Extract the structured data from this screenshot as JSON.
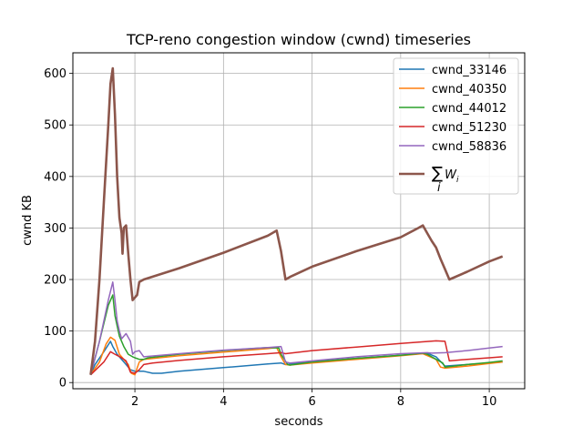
{
  "chart_data": {
    "type": "line",
    "title": "TCP-reno congestion window (cwnd) timeseries",
    "xlabel": "seconds",
    "ylabel": "cwnd KB",
    "xlim": [
      0.6,
      10.8
    ],
    "ylim": [
      -12,
      640
    ],
    "xticks": [
      2,
      4,
      6,
      8,
      10
    ],
    "yticks": [
      0,
      100,
      200,
      300,
      400,
      500,
      600
    ],
    "grid": true,
    "legend_position": "top-right",
    "series": [
      {
        "name": "cwnd_33146",
        "color": "#1f77b4",
        "points": [
          [
            1.0,
            15
          ],
          [
            1.1,
            35
          ],
          [
            1.3,
            60
          ],
          [
            1.45,
            80
          ],
          [
            1.5,
            70
          ],
          [
            1.6,
            55
          ],
          [
            1.7,
            45
          ],
          [
            1.8,
            35
          ],
          [
            1.9,
            25
          ],
          [
            2.0,
            22
          ],
          [
            2.2,
            22
          ],
          [
            2.4,
            18
          ],
          [
            2.6,
            18
          ],
          [
            3.0,
            22
          ],
          [
            4.0,
            29
          ],
          [
            5.0,
            36
          ],
          [
            5.3,
            38
          ],
          [
            5.4,
            35
          ],
          [
            6.0,
            40
          ],
          [
            7.0,
            47
          ],
          [
            8.0,
            53
          ],
          [
            8.6,
            57
          ],
          [
            8.8,
            50
          ],
          [
            9.0,
            32
          ],
          [
            9.5,
            35
          ],
          [
            10.0,
            38
          ],
          [
            10.3,
            40
          ]
        ]
      },
      {
        "name": "cwnd_40350",
        "color": "#ff7f0e",
        "points": [
          [
            1.0,
            15
          ],
          [
            1.2,
            40
          ],
          [
            1.35,
            75
          ],
          [
            1.45,
            88
          ],
          [
            1.55,
            82
          ],
          [
            1.65,
            55
          ],
          [
            1.75,
            45
          ],
          [
            1.85,
            35
          ],
          [
            1.92,
            18
          ],
          [
            2.0,
            15
          ],
          [
            2.05,
            28
          ],
          [
            2.1,
            40
          ],
          [
            2.2,
            45
          ],
          [
            3.0,
            52
          ],
          [
            4.0,
            59
          ],
          [
            5.0,
            66
          ],
          [
            5.2,
            68
          ],
          [
            5.3,
            50
          ],
          [
            5.4,
            35
          ],
          [
            5.5,
            34
          ],
          [
            6.0,
            38
          ],
          [
            7.0,
            45
          ],
          [
            8.0,
            52
          ],
          [
            8.5,
            56
          ],
          [
            8.8,
            45
          ],
          [
            8.9,
            30
          ],
          [
            9.0,
            28
          ],
          [
            9.5,
            32
          ],
          [
            10.0,
            37
          ],
          [
            10.3,
            40
          ]
        ]
      },
      {
        "name": "cwnd_44012",
        "color": "#2ca02c",
        "points": [
          [
            1.0,
            15
          ],
          [
            1.2,
            80
          ],
          [
            1.4,
            150
          ],
          [
            1.5,
            170
          ],
          [
            1.55,
            130
          ],
          [
            1.6,
            110
          ],
          [
            1.65,
            90
          ],
          [
            1.75,
            70
          ],
          [
            1.85,
            55
          ],
          [
            1.95,
            50
          ],
          [
            2.0,
            48
          ],
          [
            2.1,
            45
          ],
          [
            2.2,
            45
          ],
          [
            2.3,
            48
          ],
          [
            3.0,
            55
          ],
          [
            4.0,
            62
          ],
          [
            5.0,
            68
          ],
          [
            5.25,
            67
          ],
          [
            5.3,
            55
          ],
          [
            5.45,
            35
          ],
          [
            5.5,
            34
          ],
          [
            6.0,
            40
          ],
          [
            7.0,
            47
          ],
          [
            8.0,
            53
          ],
          [
            8.5,
            57
          ],
          [
            8.6,
            55
          ],
          [
            8.8,
            45
          ],
          [
            8.95,
            38
          ],
          [
            9.0,
            30
          ],
          [
            9.5,
            35
          ],
          [
            10.0,
            39
          ],
          [
            10.3,
            42
          ]
        ]
      },
      {
        "name": "cwnd_51230",
        "color": "#d62728",
        "points": [
          [
            1.0,
            15
          ],
          [
            1.3,
            40
          ],
          [
            1.45,
            60
          ],
          [
            1.55,
            55
          ],
          [
            1.7,
            48
          ],
          [
            1.8,
            42
          ],
          [
            1.9,
            20
          ],
          [
            2.0,
            18
          ],
          [
            2.1,
            25
          ],
          [
            2.2,
            35
          ],
          [
            2.4,
            38
          ],
          [
            3.0,
            43
          ],
          [
            4.0,
            50
          ],
          [
            5.0,
            56
          ],
          [
            5.3,
            58
          ],
          [
            5.4,
            56
          ],
          [
            6.0,
            62
          ],
          [
            7.0,
            69
          ],
          [
            8.0,
            76
          ],
          [
            8.8,
            81
          ],
          [
            9.0,
            80
          ],
          [
            9.1,
            42
          ],
          [
            9.5,
            45
          ],
          [
            10.0,
            48
          ],
          [
            10.3,
            50
          ]
        ]
      },
      {
        "name": "cwnd_58836",
        "color": "#9467bd",
        "points": [
          [
            1.0,
            15
          ],
          [
            1.2,
            80
          ],
          [
            1.4,
            160
          ],
          [
            1.5,
            195
          ],
          [
            1.55,
            160
          ],
          [
            1.6,
            120
          ],
          [
            1.65,
            100
          ],
          [
            1.7,
            85
          ],
          [
            1.8,
            95
          ],
          [
            1.9,
            80
          ],
          [
            1.95,
            55
          ],
          [
            2.0,
            60
          ],
          [
            2.1,
            62
          ],
          [
            2.2,
            50
          ],
          [
            3.0,
            56
          ],
          [
            4.0,
            63
          ],
          [
            5.0,
            68
          ],
          [
            5.3,
            70
          ],
          [
            5.4,
            40
          ],
          [
            5.5,
            38
          ],
          [
            6.0,
            42
          ],
          [
            7.0,
            50
          ],
          [
            8.0,
            56
          ],
          [
            8.6,
            58
          ],
          [
            8.7,
            57
          ],
          [
            9.0,
            58
          ],
          [
            9.5,
            62
          ],
          [
            10.0,
            67
          ],
          [
            10.3,
            70
          ]
        ]
      },
      {
        "name": "sum",
        "color": "#8c564b",
        "points": [
          [
            1.0,
            15
          ],
          [
            1.1,
            80
          ],
          [
            1.2,
            200
          ],
          [
            1.3,
            350
          ],
          [
            1.4,
            500
          ],
          [
            1.45,
            580
          ],
          [
            1.5,
            610
          ],
          [
            1.55,
            520
          ],
          [
            1.6,
            400
          ],
          [
            1.65,
            320
          ],
          [
            1.7,
            290
          ],
          [
            1.72,
            250
          ],
          [
            1.75,
            300
          ],
          [
            1.8,
            305
          ],
          [
            1.85,
            250
          ],
          [
            1.9,
            200
          ],
          [
            1.95,
            160
          ],
          [
            2.0,
            165
          ],
          [
            2.05,
            170
          ],
          [
            2.1,
            195
          ],
          [
            2.2,
            200
          ],
          [
            3.0,
            222
          ],
          [
            4.0,
            252
          ],
          [
            5.0,
            285
          ],
          [
            5.2,
            295
          ],
          [
            5.3,
            255
          ],
          [
            5.4,
            200
          ],
          [
            5.5,
            205
          ],
          [
            6.0,
            225
          ],
          [
            7.0,
            255
          ],
          [
            8.0,
            282
          ],
          [
            8.4,
            300
          ],
          [
            8.5,
            305
          ],
          [
            8.6,
            290
          ],
          [
            8.7,
            275
          ],
          [
            8.8,
            262
          ],
          [
            8.9,
            240
          ],
          [
            9.0,
            220
          ],
          [
            9.1,
            200
          ],
          [
            9.5,
            215
          ],
          [
            10.0,
            235
          ],
          [
            10.3,
            245
          ]
        ]
      }
    ]
  }
}
